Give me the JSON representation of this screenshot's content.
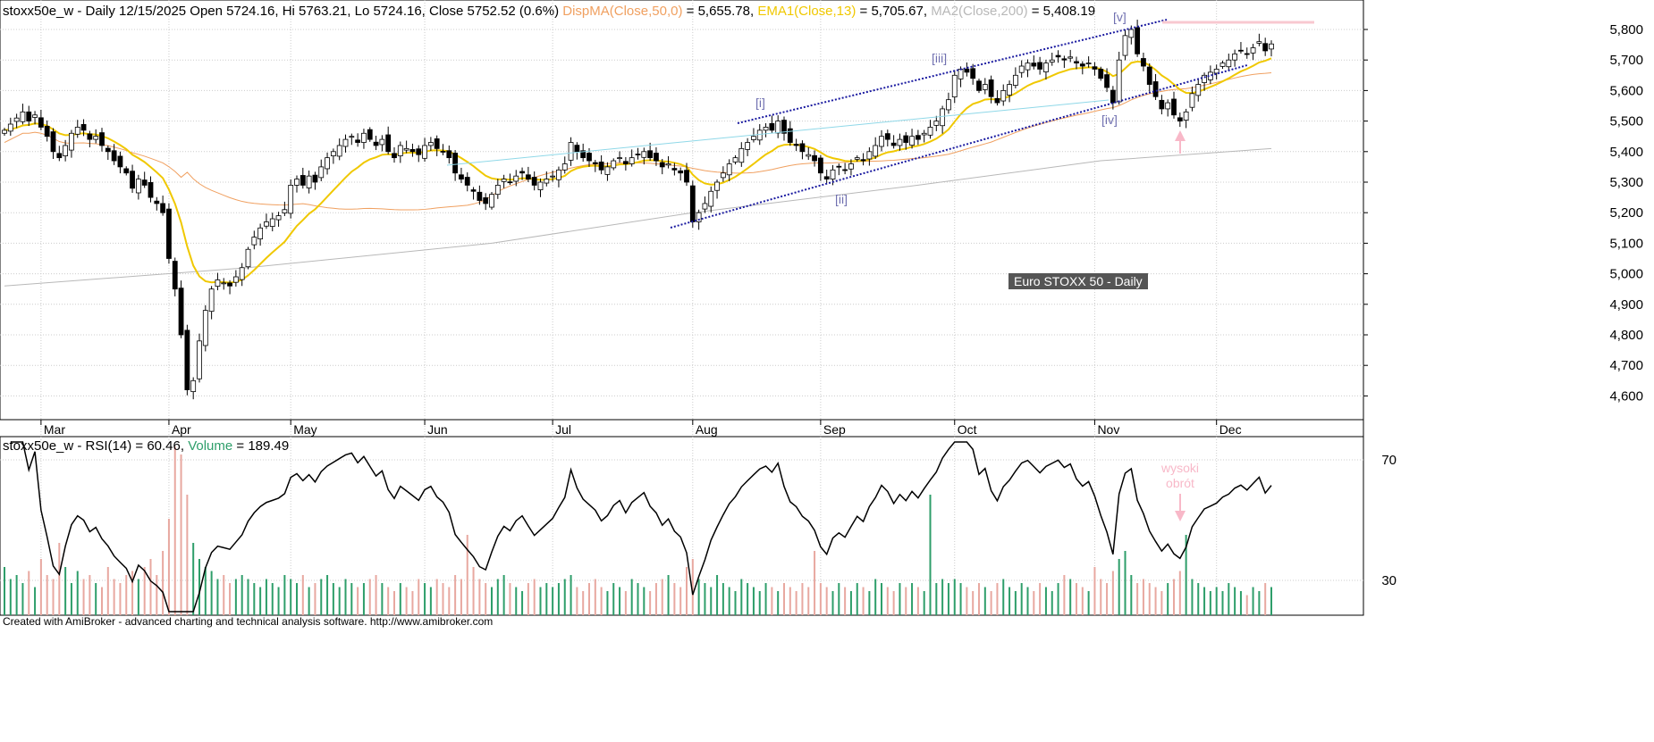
{
  "header": {
    "symbol": "stoxx50e_w - Daily 12/15/2025 Open 5724.16, Hi 5763.21, Lo 5724.16, Close 5752.52 (0.6%)",
    "ma50_label": "DispMA(Close,50,0)",
    "ma50_value": " = 5,655.78, ",
    "ema_label": "EMA1(Close,13)",
    "ema_value": " = 5,705.67, ",
    "ma200_label": "MA2(Close,200)",
    "ma200_value": " = 5,408.19"
  },
  "rsi_header": {
    "label": "stoxx50e_w - RSI(14) = 60.46, ",
    "volume_label": "Volume",
    "volume_value": " = 189.49"
  },
  "footer": "Created with AmiBroker - advanced charting and technical analysis software. http://www.amibroker.com",
  "colors": {
    "ma50": "#f0a060",
    "ema": "#f0c800",
    "ma200": "#b8b8b8",
    "channel": "#1a1aa0",
    "wave": "#7070b0",
    "up_vol": "#2e9e6a",
    "down_vol": "#e8a8a0",
    "annot": "#f8b8c8"
  },
  "chart_data": {
    "type": "candlestick",
    "title": "Euro STOXX 50 - Daily",
    "ylim": [
      4500,
      5850
    ],
    "yticks": [
      4600,
      4700,
      4800,
      4900,
      5000,
      5100,
      5200,
      5300,
      5400,
      5500,
      5600,
      5700,
      5800
    ],
    "ytick_labels": [
      "4,600",
      "4,700",
      "4,800",
      "4,900",
      "5,000",
      "5,100",
      "5,200",
      "5,300",
      "5,400",
      "5,500",
      "5,600",
      "5,700",
      "5,800"
    ],
    "months": [
      {
        "label": "Mar",
        "bar": 6
      },
      {
        "label": "Apr",
        "bar": 27
      },
      {
        "label": "May",
        "bar": 47
      },
      {
        "label": "Jun",
        "bar": 69
      },
      {
        "label": "Jul",
        "bar": 90
      },
      {
        "label": "Aug",
        "bar": 113
      },
      {
        "label": "Sep",
        "bar": 134
      },
      {
        "label": "Oct",
        "bar": 156
      },
      {
        "label": "Nov",
        "bar": 179
      },
      {
        "label": "Dec",
        "bar": 199
      }
    ],
    "closes": [
      5470,
      5490,
      5510,
      5530,
      5500,
      5520,
      5480,
      5450,
      5400,
      5380,
      5420,
      5460,
      5480,
      5470,
      5440,
      5450,
      5420,
      5400,
      5370,
      5350,
      5330,
      5280,
      5310,
      5290,
      5250,
      5230,
      5200,
      5050,
      4950,
      4800,
      4620,
      4650,
      4780,
      4880,
      4950,
      4980,
      4970,
      4960,
      4990,
      5020,
      5080,
      5120,
      5150,
      5170,
      5180,
      5190,
      5210,
      5290,
      5310,
      5290,
      5320,
      5300,
      5350,
      5380,
      5400,
      5420,
      5440,
      5450,
      5430,
      5460,
      5440,
      5420,
      5440,
      5400,
      5380,
      5420,
      5410,
      5400,
      5390,
      5420,
      5430,
      5410,
      5400,
      5380,
      5330,
      5310,
      5290,
      5270,
      5240,
      5230,
      5260,
      5290,
      5310,
      5300,
      5320,
      5330,
      5310,
      5290,
      5300,
      5310,
      5320,
      5340,
      5360,
      5430,
      5400,
      5380,
      5370,
      5360,
      5340,
      5350,
      5370,
      5380,
      5360,
      5380,
      5390,
      5400,
      5380,
      5370,
      5350,
      5360,
      5340,
      5330,
      5300,
      5170,
      5200,
      5230,
      5270,
      5300,
      5330,
      5360,
      5380,
      5410,
      5430,
      5450,
      5470,
      5480,
      5470,
      5500,
      5460,
      5430,
      5420,
      5400,
      5390,
      5370,
      5330,
      5310,
      5340,
      5350,
      5340,
      5360,
      5380,
      5370,
      5400,
      5420,
      5450,
      5440,
      5420,
      5440,
      5430,
      5450,
      5440,
      5460,
      5480,
      5500,
      5540,
      5570,
      5650,
      5670,
      5660,
      5640,
      5600,
      5620,
      5580,
      5560,
      5600,
      5620,
      5650,
      5680,
      5690,
      5680,
      5670,
      5690,
      5700,
      5710,
      5700,
      5710,
      5690,
      5680,
      5690,
      5670,
      5640,
      5610,
      5560,
      5700,
      5780,
      5800,
      5720,
      5680,
      5620,
      5580,
      5540,
      5560,
      5520,
      5500,
      5530,
      5590,
      5620,
      5650,
      5660,
      5670,
      5690,
      5700,
      5720,
      5730,
      5720,
      5740,
      5760,
      5730,
      5752.52
    ],
    "volume": [
      60,
      45,
      50,
      40,
      55,
      35,
      70,
      50,
      45,
      90,
      60,
      40,
      55,
      45,
      50,
      40,
      35,
      60,
      45,
      40,
      50,
      55,
      45,
      60,
      70,
      50,
      80,
      120,
      210,
      200,
      150,
      90,
      70,
      60,
      55,
      45,
      50,
      40,
      45,
      50,
      45,
      40,
      35,
      45,
      40,
      35,
      50,
      45,
      40,
      50,
      35,
      40,
      45,
      50,
      40,
      35,
      45,
      40,
      35,
      40,
      45,
      50,
      40,
      35,
      30,
      40,
      35,
      30,
      45,
      40,
      35,
      45,
      40,
      35,
      50,
      45,
      100,
      60,
      45,
      40,
      35,
      45,
      50,
      40,
      35,
      30,
      40,
      45,
      35,
      40,
      35,
      40,
      45,
      50,
      35,
      30,
      40,
      45,
      35,
      30,
      40,
      35,
      30,
      45,
      40,
      35,
      30,
      40,
      45,
      50,
      40,
      35,
      60,
      70,
      45,
      40,
      35,
      50,
      40,
      35,
      30,
      45,
      40,
      35,
      30,
      40,
      35,
      30,
      40,
      35,
      30,
      40,
      35,
      80,
      40,
      35,
      30,
      40,
      35,
      30,
      40,
      35,
      30,
      45,
      40,
      35,
      30,
      40,
      35,
      40,
      35,
      30,
      150,
      40,
      45,
      40,
      45,
      40,
      35,
      30,
      40,
      35,
      30,
      40,
      45,
      35,
      30,
      40,
      35,
      30,
      40,
      35,
      30,
      40,
      50,
      45,
      40,
      35,
      30,
      60,
      45,
      40,
      55,
      70,
      80,
      50,
      40,
      45,
      40,
      35,
      30,
      40,
      45,
      55,
      100,
      45,
      40,
      35,
      30,
      35,
      30,
      40,
      35,
      30,
      25,
      35,
      30,
      40,
      35
    ],
    "ma200_points": [
      [
        0,
        4960
      ],
      [
        40,
        5020
      ],
      [
        80,
        5100
      ],
      [
        113,
        5200
      ],
      [
        150,
        5290
      ],
      [
        180,
        5370
      ],
      [
        208,
        5410
      ]
    ],
    "rsi": {
      "period": 14,
      "ylim": [
        20,
        80
      ],
      "yticks": [
        30,
        70
      ]
    },
    "annotations": [
      "[i]",
      "[ii]",
      "[iii]",
      "[iv]",
      "[v]",
      "wysoki",
      "obrót"
    ]
  }
}
